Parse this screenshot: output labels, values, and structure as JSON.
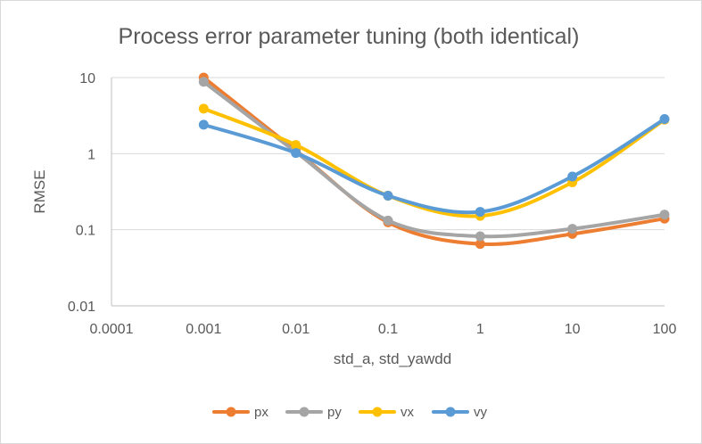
{
  "chart_data": {
    "type": "line",
    "title": "Process error parameter tuning (both identical)",
    "xlabel": "std_a, std_yawdd",
    "ylabel": "RMSE",
    "x_scale": "log",
    "y_scale": "log",
    "x_ticks": [
      "0.0001",
      "0.001",
      "0.01",
      "0.1",
      "1",
      "10",
      "100"
    ],
    "y_ticks": [
      "0.01",
      "0.1",
      "1",
      "10"
    ],
    "xlim": [
      0.0001,
      100
    ],
    "ylim": [
      0.01,
      10
    ],
    "grid": "horizontal",
    "smoothed": true,
    "legend_position": "bottom",
    "x": [
      0.001,
      0.01,
      0.1,
      1,
      10,
      100
    ],
    "series": [
      {
        "name": "px",
        "color": "#ED7D31",
        "values": [
          10,
          1.1,
          0.125,
          0.065,
          0.088,
          0.14
        ]
      },
      {
        "name": "py",
        "color": "#A5A5A5",
        "values": [
          8.8,
          1.05,
          0.132,
          0.082,
          0.103,
          0.158
        ]
      },
      {
        "name": "vx",
        "color": "#FFC000",
        "values": [
          3.9,
          1.3,
          0.28,
          0.152,
          0.42,
          2.8
        ]
      },
      {
        "name": "vy",
        "color": "#5B9BD5",
        "values": [
          2.4,
          1.02,
          0.28,
          0.172,
          0.5,
          2.85
        ]
      }
    ],
    "colors": {
      "gridline": "#d9d9d9",
      "axis": "#bfbfbf",
      "text": "#595959"
    }
  }
}
